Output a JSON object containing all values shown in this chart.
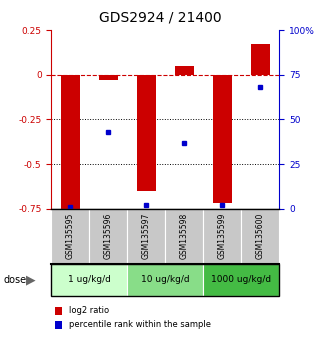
{
  "title": "GDS2924 / 21400",
  "samples": [
    "GSM135595",
    "GSM135596",
    "GSM135597",
    "GSM135598",
    "GSM135599",
    "GSM135600"
  ],
  "log2_ratio": [
    -0.75,
    -0.03,
    -0.65,
    0.05,
    -0.72,
    0.17
  ],
  "percentile_rank": [
    1,
    43,
    2,
    37,
    2,
    68
  ],
  "bar_color": "#cc0000",
  "dot_color": "#0000cc",
  "ylim_left": [
    -0.75,
    0.25
  ],
  "ylim_right": [
    0,
    100
  ],
  "dotted_lines": [
    -0.25,
    -0.5
  ],
  "dose_groups": [
    {
      "label": "1 ug/kg/d",
      "samples": [
        0,
        1
      ],
      "color": "#ccffcc"
    },
    {
      "label": "10 ug/kg/d",
      "samples": [
        2,
        3
      ],
      "color": "#88dd88"
    },
    {
      "label": "1000 ug/kg/d",
      "samples": [
        4,
        5
      ],
      "color": "#44bb44"
    }
  ],
  "legend_red": "log2 ratio",
  "legend_blue": "percentile rank within the sample",
  "bar_width": 0.5,
  "title_fontsize": 10,
  "tick_fontsize": 6.5,
  "sample_fontsize": 5.5,
  "dose_fontsize": 6.5,
  "legend_fontsize": 6
}
